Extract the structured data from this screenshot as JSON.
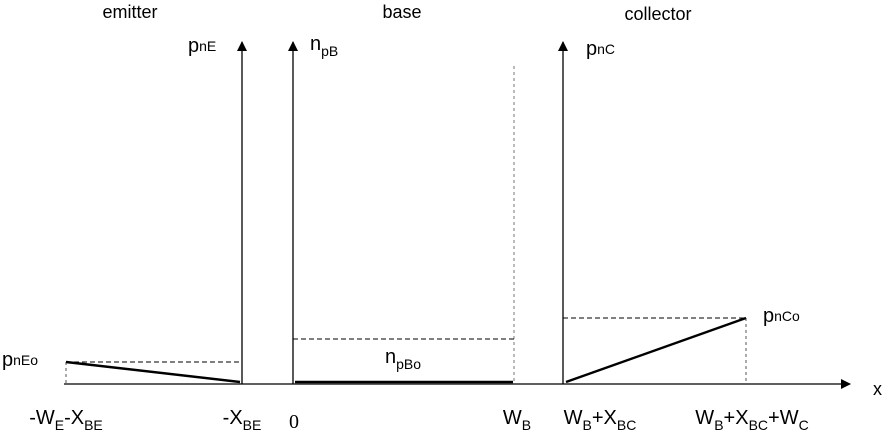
{
  "regions": {
    "emitter": "emitter",
    "base": "base",
    "collector": "collector"
  },
  "axes": {
    "emitter": {
      "main": "p",
      "sub": "nE"
    },
    "base": {
      "main": "n",
      "sub": "pB"
    },
    "collector": {
      "main": "p",
      "sub": "nC"
    },
    "x": "x"
  },
  "levels": {
    "emitter": {
      "main": "p",
      "sub": "nEo"
    },
    "base": {
      "main": "n",
      "sub": "pBo"
    },
    "collector": {
      "main": "p",
      "sub": "nCo"
    }
  },
  "ticks": {
    "t1": {
      "a": "-W",
      "a_sub": "E",
      "b": "-X",
      "b_sub": "BE"
    },
    "t2": {
      "a": "-X",
      "a_sub": "BE"
    },
    "t3": {
      "a": "0"
    },
    "t4": {
      "a": "W",
      "a_sub": "B"
    },
    "t5": {
      "a": "W",
      "a_sub": "B",
      "b": "+X",
      "b_sub": "BC"
    },
    "t6": {
      "a": "W",
      "a_sub": "B",
      "b": "+X",
      "b_sub": "BC",
      "c": "+W",
      "c_sub": "C"
    }
  },
  "colors": {
    "line": "#000000",
    "background": "#ffffff"
  }
}
